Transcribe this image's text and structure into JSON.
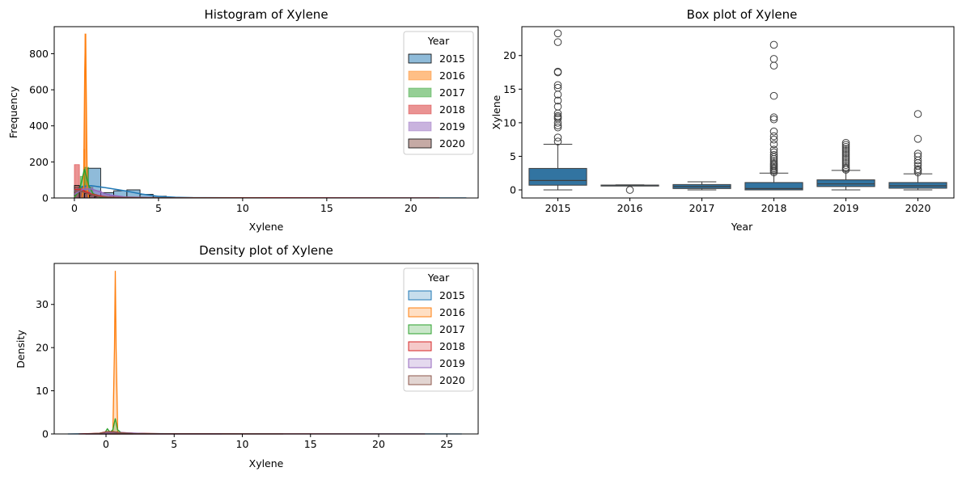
{
  "colors": {
    "2015": "#1f77b4",
    "2016": "#ff7f0e",
    "2017": "#2ca02c",
    "2018": "#d62728",
    "2019": "#9467bd",
    "2020": "#8c564b",
    "box": "#3274a1"
  },
  "chart_data": [
    {
      "type": "histogram",
      "title": "Histogram of Xylene",
      "xlabel": "Xylene",
      "ylabel": "Frequency",
      "xlim": [
        -1.2,
        24.0
      ],
      "ylim": [
        0,
        950
      ],
      "x_ticks": [
        0,
        5,
        10,
        15,
        20
      ],
      "y_ticks": [
        0,
        200,
        400,
        600,
        800
      ],
      "legend": {
        "title": "Year",
        "position": "top-right",
        "entries": [
          "2015",
          "2016",
          "2017",
          "2018",
          "2019",
          "2020"
        ]
      },
      "bin_width": 0.78,
      "series": [
        {
          "name": "2015",
          "bins": [
            [
              0,
              0.78,
              60
            ],
            [
              0.78,
              1.56,
              165
            ],
            [
              1.56,
              2.34,
              30
            ],
            [
              2.34,
              3.12,
              40
            ],
            [
              3.12,
              3.9,
              45
            ],
            [
              3.9,
              4.68,
              20
            ],
            [
              4.68,
              5.46,
              10
            ],
            [
              5.46,
              6.24,
              5
            ],
            [
              6.24,
              7.02,
              3
            ]
          ],
          "kde": [
            [
              0,
              40
            ],
            [
              0.5,
              65
            ],
            [
              1,
              68
            ],
            [
              2,
              55
            ],
            [
              3,
              40
            ],
            [
              4,
              22
            ],
            [
              5,
              9
            ],
            [
              6,
              4
            ],
            [
              7,
              2
            ],
            [
              10,
              1
            ],
            [
              15,
              0.5
            ],
            [
              23.3,
              0
            ]
          ]
        },
        {
          "name": "2016",
          "bins": [
            [
              0.55,
              0.62,
              270
            ],
            [
              0.62,
              0.69,
              910
            ],
            [
              0.69,
              0.76,
              120
            ]
          ],
          "kde": [
            [
              0.45,
              0
            ],
            [
              0.55,
              60
            ],
            [
              0.62,
              700
            ],
            [
              0.66,
              910
            ],
            [
              0.7,
              600
            ],
            [
              0.76,
              50
            ],
            [
              0.85,
              0
            ]
          ]
        },
        {
          "name": "2017",
          "bins": [
            [
              0.1,
              0.35,
              30
            ],
            [
              0.35,
              0.6,
              120
            ],
            [
              0.6,
              0.85,
              170
            ],
            [
              0.85,
              1.1,
              60
            ],
            [
              1.1,
              1.35,
              20
            ]
          ],
          "kde": [
            [
              0,
              5
            ],
            [
              0.3,
              40
            ],
            [
              0.6,
              160
            ],
            [
              0.85,
              70
            ],
            [
              1.1,
              25
            ],
            [
              1.5,
              5
            ],
            [
              2,
              0
            ]
          ]
        },
        {
          "name": "2018",
          "bins": [
            [
              0,
              0.3,
              185
            ],
            [
              0.3,
              0.6,
              55
            ],
            [
              0.6,
              0.9,
              35
            ],
            [
              0.9,
              1.2,
              20
            ],
            [
              1.2,
              1.5,
              12
            ],
            [
              1.5,
              1.8,
              8
            ],
            [
              1.8,
              2.1,
              5
            ]
          ],
          "kde": [
            [
              0,
              45
            ],
            [
              0.3,
              50
            ],
            [
              0.6,
              38
            ],
            [
              1,
              22
            ],
            [
              1.5,
              12
            ],
            [
              2,
              6
            ],
            [
              3,
              2
            ],
            [
              5,
              1
            ],
            [
              10,
              1
            ],
            [
              21.7,
              0
            ]
          ]
        },
        {
          "name": "2019",
          "bins": [
            [
              0.1,
              0.6,
              50
            ],
            [
              0.6,
              1.1,
              60
            ],
            [
              1.1,
              1.6,
              40
            ],
            [
              1.6,
              2.1,
              22
            ],
            [
              2.1,
              2.6,
              12
            ],
            [
              2.6,
              3.1,
              6
            ]
          ],
          "kde": [
            [
              0,
              20
            ],
            [
              0.5,
              48
            ],
            [
              1,
              50
            ],
            [
              1.5,
              35
            ],
            [
              2,
              18
            ],
            [
              3,
              6
            ],
            [
              5,
              1
            ],
            [
              7,
              0
            ]
          ]
        },
        {
          "name": "2020",
          "bins": [
            [
              0,
              0.3,
              70
            ],
            [
              0.3,
              0.6,
              40
            ],
            [
              0.6,
              0.9,
              25
            ],
            [
              0.9,
              1.2,
              15
            ],
            [
              1.2,
              1.5,
              8
            ]
          ],
          "kde": [
            [
              0,
              35
            ],
            [
              0.3,
              42
            ],
            [
              0.6,
              30
            ],
            [
              1,
              18
            ],
            [
              1.5,
              8
            ],
            [
              2.5,
              3
            ],
            [
              5,
              1
            ],
            [
              11.3,
              0
            ]
          ]
        }
      ]
    },
    {
      "type": "box",
      "title": "Box plot of Xylene",
      "xlabel": "Year",
      "ylabel": "Xylene",
      "ylim": [
        -1.2,
        24.3
      ],
      "y_ticks": [
        0,
        5,
        10,
        15,
        20
      ],
      "categories": [
        "2015",
        "2016",
        "2017",
        "2018",
        "2019",
        "2020"
      ],
      "boxes": [
        {
          "q1": 0.7,
          "median": 1.4,
          "q3": 3.2,
          "whisker_low": 0.0,
          "whisker_high": 6.8,
          "outliers": [
            7.2,
            7.8,
            9.3,
            9.6,
            10.0,
            10.6,
            10.8,
            11.0,
            11.4,
            12.4,
            13.3,
            14.2,
            15.2,
            15.6,
            17.5,
            17.6,
            22.0,
            23.3
          ]
        },
        {
          "q1": 0.65,
          "median": 0.7,
          "q3": 0.72,
          "whisker_low": 0.65,
          "whisker_high": 0.75,
          "outliers": [
            0.0
          ]
        },
        {
          "q1": 0.2,
          "median": 0.5,
          "q3": 0.8,
          "whisker_low": 0.0,
          "whisker_high": 1.2,
          "outliers": []
        },
        {
          "q1": 0.0,
          "median": 0.2,
          "q3": 1.1,
          "whisker_low": 0.0,
          "whisker_high": 2.5,
          "outliers": [
            2.6,
            2.8,
            3.0,
            3.2,
            3.4,
            3.6,
            3.8,
            4.0,
            4.3,
            4.6,
            4.9,
            5.2,
            5.6,
            6.0,
            6.8,
            7.5,
            8.0,
            8.7,
            10.5,
            10.8,
            14.0,
            18.5,
            19.5,
            21.6
          ]
        },
        {
          "q1": 0.5,
          "median": 0.9,
          "q3": 1.5,
          "whisker_low": 0.0,
          "whisker_high": 2.9,
          "outliers": [
            3.0,
            3.2,
            3.4,
            3.7,
            4.0,
            4.3,
            4.6,
            4.9,
            5.2,
            5.5,
            5.8,
            6.1,
            6.4,
            6.7,
            7.0
          ]
        },
        {
          "q1": 0.25,
          "median": 0.6,
          "q3": 1.1,
          "whisker_low": 0.0,
          "whisker_high": 2.4,
          "outliers": [
            2.6,
            2.9,
            3.1,
            3.6,
            4.0,
            4.4,
            5.0,
            5.4,
            7.6,
            11.3
          ]
        }
      ]
    },
    {
      "type": "area",
      "title": "Density plot of Xylene",
      "xlabel": "Xylene",
      "ylabel": "Density",
      "xlim": [
        -3.8,
        27.3
      ],
      "ylim": [
        0,
        39.5
      ],
      "x_ticks": [
        0,
        5,
        10,
        15,
        20,
        25
      ],
      "y_ticks": [
        0,
        10,
        20,
        30
      ],
      "legend": {
        "title": "Year",
        "position": "top-right",
        "entries": [
          "2015",
          "2016",
          "2017",
          "2018",
          "2019",
          "2020"
        ]
      },
      "series": [
        {
          "name": "2015",
          "points": [
            [
              -2.8,
              0
            ],
            [
              -1,
              0.05
            ],
            [
              0,
              0.15
            ],
            [
              1,
              0.2
            ],
            [
              2,
              0.15
            ],
            [
              3,
              0.1
            ],
            [
              5,
              0.05
            ],
            [
              10,
              0.02
            ],
            [
              20,
              0.01
            ],
            [
              26.1,
              0
            ]
          ]
        },
        {
          "name": "2016",
          "points": [
            [
              0.3,
              0
            ],
            [
              0.5,
              0.3
            ],
            [
              0.62,
              20
            ],
            [
              0.68,
              37.8
            ],
            [
              0.74,
              20
            ],
            [
              0.86,
              0.3
            ],
            [
              1.05,
              0
            ]
          ]
        },
        {
          "name": "2017",
          "points": [
            [
              -0.5,
              0
            ],
            [
              -0.1,
              0.2
            ],
            [
              0.1,
              1.2
            ],
            [
              0.3,
              0.4
            ],
            [
              0.5,
              1.0
            ],
            [
              0.68,
              3.6
            ],
            [
              0.85,
              1.0
            ],
            [
              1.1,
              0.3
            ],
            [
              1.6,
              0.05
            ],
            [
              2,
              0
            ]
          ]
        },
        {
          "name": "2018",
          "points": [
            [
              -2,
              0
            ],
            [
              -0.5,
              0.15
            ],
            [
              0,
              0.5
            ],
            [
              0.5,
              0.55
            ],
            [
              1,
              0.35
            ],
            [
              2,
              0.15
            ],
            [
              4,
              0.05
            ],
            [
              10,
              0.02
            ],
            [
              23.4,
              0
            ]
          ]
        },
        {
          "name": "2019",
          "points": [
            [
              -1.5,
              0
            ],
            [
              -0.5,
              0.1
            ],
            [
              0.5,
              0.35
            ],
            [
              1,
              0.35
            ],
            [
              2,
              0.2
            ],
            [
              3,
              0.08
            ],
            [
              5,
              0.02
            ],
            [
              8.5,
              0
            ]
          ]
        },
        {
          "name": "2020",
          "points": [
            [
              -1.5,
              0
            ],
            [
              -0.5,
              0.15
            ],
            [
              0,
              0.45
            ],
            [
              0.5,
              0.5
            ],
            [
              1,
              0.3
            ],
            [
              2,
              0.12
            ],
            [
              4,
              0.03
            ],
            [
              13,
              0
            ]
          ]
        }
      ]
    }
  ]
}
